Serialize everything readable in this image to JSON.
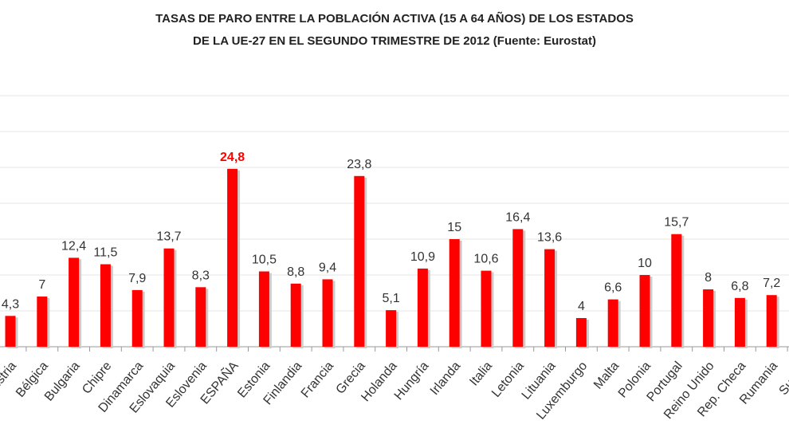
{
  "chart_data": {
    "type": "bar",
    "title": [
      "TASAS DE PARO ENTRE LA POBLACIÓN ACTIVA (15 A 64 AÑOS) DE LOS ESTADOS",
      "DE LA UE-27 EN EL SEGUNDO TRIMESTRE DE 2012 (Fuente: Eurostat)"
    ],
    "categories": [
      "Austria",
      "Bélgica",
      "Bulgaria",
      "Chipre",
      "Dinamarca",
      "Eslovaquia",
      "Eslovenia",
      "ESPAÑA",
      "Estonia",
      "Finlandia",
      "Francia",
      "Grecia",
      "Holanda",
      "Hungría",
      "Irlanda",
      "Italia",
      "Letonia",
      "Lituania",
      "Luxemburgo",
      "Malta",
      "Polonia",
      "Portugal",
      "Reino Unido",
      "Rep. Checa",
      "Rumania",
      "Suecia"
    ],
    "values": [
      4.3,
      7,
      12.4,
      11.5,
      7.9,
      13.7,
      8.3,
      24.8,
      10.5,
      8.8,
      9.4,
      23.8,
      5.1,
      10.9,
      15,
      10.6,
      16.4,
      13.6,
      4,
      6.6,
      10,
      15.7,
      8,
      6.8,
      7.2,
      null
    ],
    "value_labels": [
      "4,3",
      "7",
      "12,4",
      "11,5",
      "7,9",
      "13,7",
      "8,3",
      "24,8",
      "10,5",
      "8,8",
      "9,4",
      "23,8",
      "5,1",
      "10,9",
      "15",
      "10,6",
      "16,4",
      "13,6",
      "4",
      "6,6",
      "10",
      "15,7",
      "8",
      "6,8",
      "7,2",
      null
    ],
    "color": "#ff0000",
    "highlight": {
      "index": 7,
      "label_color": "#ff0000"
    },
    "ylim": [
      0,
      35
    ],
    "yticks": [
      0,
      5,
      10,
      15,
      20,
      25,
      30,
      35
    ],
    "grid": true
  }
}
